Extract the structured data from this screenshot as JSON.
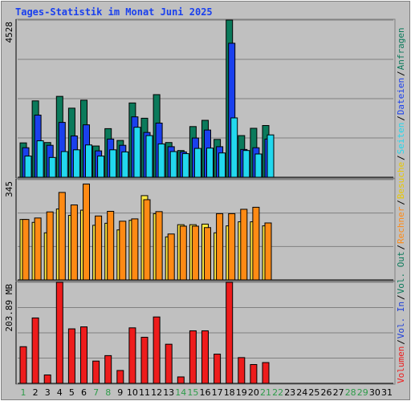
{
  "chart_data": {
    "type": "bar",
    "title": "Tages-Statistik im Monat Juni 2025",
    "days": [
      "1",
      "2",
      "3",
      "4",
      "5",
      "6",
      "7",
      "8",
      "9",
      "10",
      "11",
      "12",
      "13",
      "14",
      "15",
      "16",
      "17",
      "18",
      "19",
      "20",
      "21",
      "22",
      "23",
      "24",
      "25",
      "26",
      "27",
      "28",
      "29",
      "30",
      "31"
    ],
    "weekend_days": [
      "1",
      "7",
      "8",
      "14",
      "15",
      "21",
      "22",
      "28",
      "29"
    ],
    "panels": [
      {
        "id": "requests",
        "max_label": "4528",
        "ylim": [
          0,
          4528
        ],
        "series": [
          {
            "name": "Anfragen",
            "color": "#0b7a5b",
            "values": [
              990,
              2200,
              1000,
              2330,
              1990,
              2220,
              900,
              1400,
              1060,
              2140,
              1700,
              2380,
              1000,
              770,
              1460,
              1640,
              1090,
              4528,
              1200,
              1410,
              1490,
              null,
              null,
              null,
              null,
              null,
              null,
              null,
              null,
              null,
              null
            ]
          },
          {
            "name": "Dateien",
            "color": "#1a40ee",
            "values": [
              850,
              1790,
              920,
              1580,
              1190,
              1510,
              760,
              1100,
              920,
              1740,
              1290,
              1560,
              880,
              730,
              1130,
              1360,
              880,
              3860,
              800,
              850,
              1100,
              null,
              null,
              null,
              null,
              null,
              null,
              null,
              null,
              null,
              null
            ]
          },
          {
            "name": "Seiten",
            "color": "#22d8ee",
            "values": [
              610,
              1050,
              570,
              740,
              790,
              930,
              610,
              790,
              730,
              1440,
              1200,
              960,
              740,
              680,
              830,
              840,
              700,
              1710,
              770,
              670,
              1220,
              null,
              null,
              null,
              null,
              null,
              null,
              null,
              null,
              null,
              null
            ]
          }
        ]
      },
      {
        "id": "visits",
        "max_label": "345",
        "ylim": [
          0,
          345
        ],
        "series": [
          {
            "name": "Besuche",
            "color": "#ffe840",
            "values": [
              208,
              198,
              162,
              244,
              222,
              240,
              188,
              195,
              172,
              205,
              290,
              228,
              148,
              190,
              190,
              192,
              162,
              186,
              200,
              200,
              186,
              null,
              null,
              null,
              null,
              null,
              null,
              null,
              null,
              null,
              null
            ]
          },
          {
            "name": "Rechner",
            "color": "#ff8a14",
            "values": [
              208,
              213,
              234,
              301,
              258,
              330,
              220,
              236,
              202,
              210,
              276,
              235,
              158,
              185,
              185,
              180,
              228,
              228,
              243,
              250,
              196,
              null,
              null,
              null,
              null,
              null,
              null,
              null,
              null,
              null,
              null
            ]
          }
        ]
      },
      {
        "id": "volume",
        "max_label": "203.89 MB",
        "ylim": [
          0,
          203.89
        ],
        "series": [
          {
            "name": "Volumen",
            "color": "#ee1c1c",
            "values": [
              74,
              132,
              17,
              203.89,
              110,
              114,
              45,
              56,
              26,
              112,
              93,
              134,
              79,
              13,
              106,
              106,
              59,
              203.89,
              52,
              38,
              42,
              null,
              null,
              null,
              null,
              null,
              null,
              null,
              null,
              null,
              null
            ]
          }
        ]
      }
    ],
    "right_legend": [
      {
        "text": "Volumen",
        "color": "#ee1c1c"
      },
      {
        "text": "Vol. In",
        "color": "#1e3fd8"
      },
      {
        "text": "Vol. Out",
        "color": "#0b7a5b"
      },
      {
        "text": "Rechner",
        "color": "#ff8a14"
      },
      {
        "text": "Besuche",
        "color": "#e8c800"
      },
      {
        "text": "Seiten",
        "color": "#22d8ee"
      },
      {
        "text": "Dateien",
        "color": "#1a40ee"
      },
      {
        "text": "Anfragen",
        "color": "#0b7a5b"
      }
    ],
    "colors": {
      "background": "#c0c0c0",
      "gridline": "#808080",
      "title": "#1a40ee",
      "axis_text": "#000000",
      "weekend_text": "#2e9c4a",
      "separator": "#000000"
    }
  }
}
